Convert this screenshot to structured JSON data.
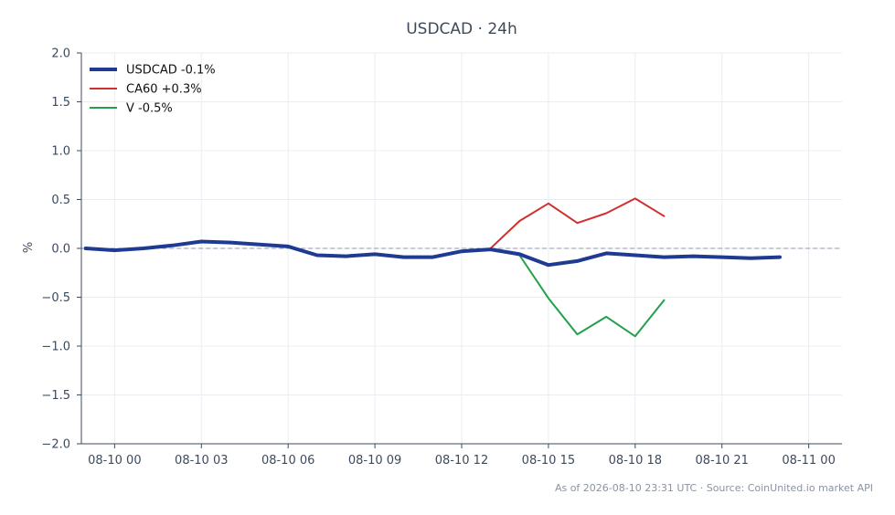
{
  "chart_data": {
    "type": "line",
    "title": "USDCAD · 24h",
    "ylabel": "%",
    "xlabel": "",
    "ylim": [
      -2.0,
      2.0
    ],
    "yticks": [
      "−2.0",
      "−1.5",
      "−1.0",
      "−0.5",
      "0.0",
      "0.5",
      "1.0",
      "1.5",
      "2.0"
    ],
    "ytick_values": [
      -2.0,
      -1.5,
      -1.0,
      -0.5,
      0.0,
      0.5,
      1.0,
      1.5,
      2.0
    ],
    "xlim_hours": [
      -1.15,
      25.15
    ],
    "xticks": [
      "08-10 00",
      "08-10 03",
      "08-10 06",
      "08-10 09",
      "08-10 12",
      "08-10 15",
      "08-10 18",
      "08-10 21",
      "08-11 00"
    ],
    "xtick_hours": [
      0,
      3,
      6,
      9,
      12,
      15,
      18,
      21,
      24
    ],
    "grid": true,
    "zero_line": true,
    "legend_position": "top-left",
    "series": [
      {
        "name": "USDCAD -0.1%",
        "color": "#1f3a93",
        "width": 4,
        "x": [
          -1,
          0,
          1,
          2,
          3,
          4,
          5,
          6,
          7,
          8,
          9,
          10,
          11,
          12,
          13,
          14,
          15,
          16,
          17,
          18,
          19,
          20,
          21,
          22,
          23
        ],
        "values": [
          0.0,
          -0.02,
          0.0,
          0.03,
          0.07,
          0.06,
          0.04,
          0.02,
          -0.07,
          -0.08,
          -0.06,
          -0.09,
          -0.09,
          -0.03,
          -0.01,
          -0.06,
          -0.17,
          -0.13,
          -0.05,
          -0.07,
          -0.09,
          -0.08,
          -0.09,
          -0.1,
          -0.09
        ]
      },
      {
        "name": "CA60 +0.3%",
        "color": "#d03030",
        "width": 2,
        "x": [
          13,
          14,
          15,
          16,
          17,
          18,
          19
        ],
        "values": [
          0.0,
          0.28,
          0.46,
          0.26,
          0.36,
          0.51,
          0.33
        ]
      },
      {
        "name": "V -0.5%",
        "color": "#22a04b",
        "width": 2,
        "x": [
          13,
          14,
          15,
          16,
          17,
          18,
          19
        ],
        "values": [
          0.0,
          -0.07,
          -0.51,
          -0.88,
          -0.7,
          -0.9,
          -0.53
        ]
      }
    ]
  },
  "footer": "As of 2026-08-10 23:31 UTC · Source: CoinUnited.io market API"
}
